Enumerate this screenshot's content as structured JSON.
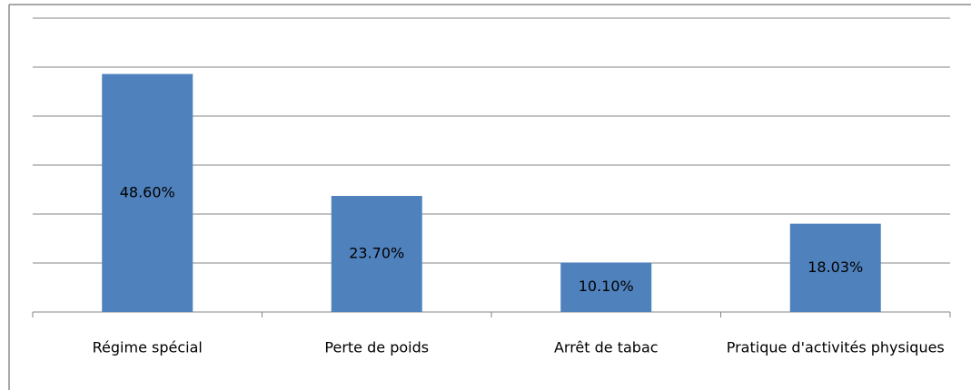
{
  "chart_data": {
    "type": "bar",
    "categories": [
      "Régime spécial",
      "Perte de poids",
      "Arrêt de tabac",
      "Pratique d'activités physiques"
    ],
    "values": [
      48.6,
      23.7,
      10.1,
      18.03
    ],
    "value_labels": [
      "48.60%",
      "23.70%",
      "10.10%",
      "18.03%"
    ],
    "color": "#4f81bd",
    "ylim": [
      0,
      60
    ],
    "yticks": [
      0,
      10,
      20,
      30,
      40,
      50,
      60
    ],
    "grid": true
  }
}
